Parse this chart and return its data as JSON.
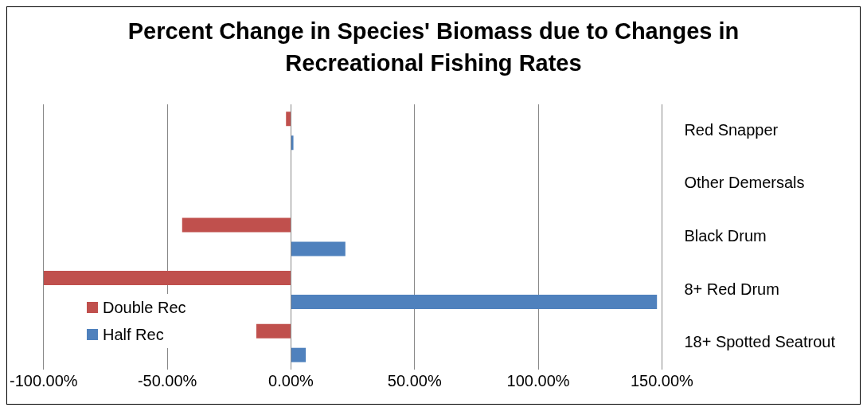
{
  "chart_data": {
    "type": "bar",
    "orientation": "horizontal",
    "title": "Percent Change in Species' Biomass due to Changes in Recreational Fishing Rates",
    "categories": [
      "Red Snapper",
      "Other Demersals",
      "Black Drum",
      "8+ Red Drum",
      "18+ Spotted Seatrout"
    ],
    "series": [
      {
        "name": "Double Rec",
        "color": "#c0504d",
        "values": [
          -2,
          0,
          -44,
          -100,
          -14
        ]
      },
      {
        "name": "Half Rec",
        "color": "#4f81bd",
        "values": [
          1,
          0,
          22,
          148,
          6
        ]
      }
    ],
    "xlim": [
      -100,
      150
    ],
    "xticks": [
      {
        "value": -100,
        "label": "-100.00%"
      },
      {
        "value": -50,
        "label": "-50.00%"
      },
      {
        "value": 0,
        "label": "0.00%"
      },
      {
        "value": 50,
        "label": "50.00%"
      },
      {
        "value": 100,
        "label": "100.00%"
      },
      {
        "value": 150,
        "label": "150.00%"
      }
    ],
    "grid": "x",
    "legend": "bottom left"
  }
}
